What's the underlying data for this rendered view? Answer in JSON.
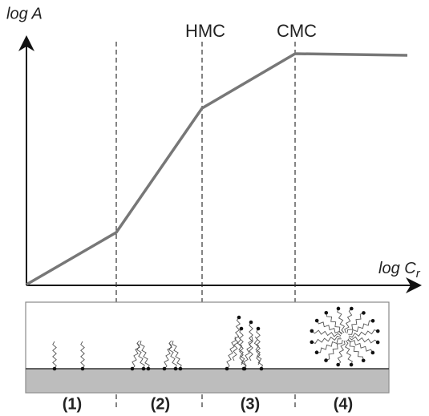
{
  "y_label": "log A",
  "x_label": {
    "text": "log C",
    "subscript": "r"
  },
  "markers": [
    "HMC",
    "CMC"
  ],
  "regions": [
    "(1)",
    "(2)",
    "(3)",
    "(4)"
  ]
}
